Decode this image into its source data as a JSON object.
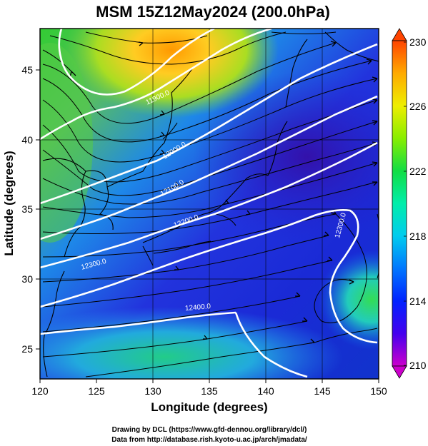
{
  "title": "MSM 15Z12May2024 (200.0hPa)",
  "x_axis": {
    "label": "Longitude (degrees)",
    "range": [
      120,
      150
    ],
    "ticks": [
      "120",
      "125",
      "130",
      "135",
      "140",
      "145",
      "150"
    ]
  },
  "y_axis": {
    "label": "Latitude  (degrees)",
    "range": [
      22.4,
      47.6
    ],
    "ticks": [
      "25",
      "30",
      "35",
      "40",
      "45"
    ]
  },
  "colorbar": {
    "min": 210,
    "max": 230,
    "ticks": [
      "210",
      "214",
      "218",
      "222",
      "226",
      "230"
    ],
    "colors": [
      "#cc00cc",
      "#3300ff",
      "#0044ff",
      "#00ccff",
      "#00ff99",
      "#44dd00",
      "#ccff00",
      "#ffcc00",
      "#ff6600",
      "#ee2200"
    ]
  },
  "contour_labels": [
    {
      "text": "11900.0",
      "lon": 130.5,
      "lat": 42.5,
      "angle": -25
    },
    {
      "text": "12000.0",
      "lon": 132.0,
      "lat": 38.7,
      "angle": -32
    },
    {
      "text": "12100.0",
      "lon": 131.8,
      "lat": 36.0,
      "angle": -30
    },
    {
      "text": "12200.0",
      "lon": 133.0,
      "lat": 33.6,
      "angle": -20
    },
    {
      "text": "12300.0",
      "lon": 124.8,
      "lat": 30.5,
      "angle": -15
    },
    {
      "text": "12400.0",
      "lon": 134.0,
      "lat": 27.4,
      "angle": -5
    },
    {
      "text": "12300.0",
      "lon": 146.8,
      "lat": 33.4,
      "angle": -75
    }
  ],
  "credits": [
    "Drawing by DCL (https://www.gfd-dennou.org/library/dcl/)",
    "Data from http://database.rish.kyoto-u.ac.jp/arch/jmadata/"
  ]
}
